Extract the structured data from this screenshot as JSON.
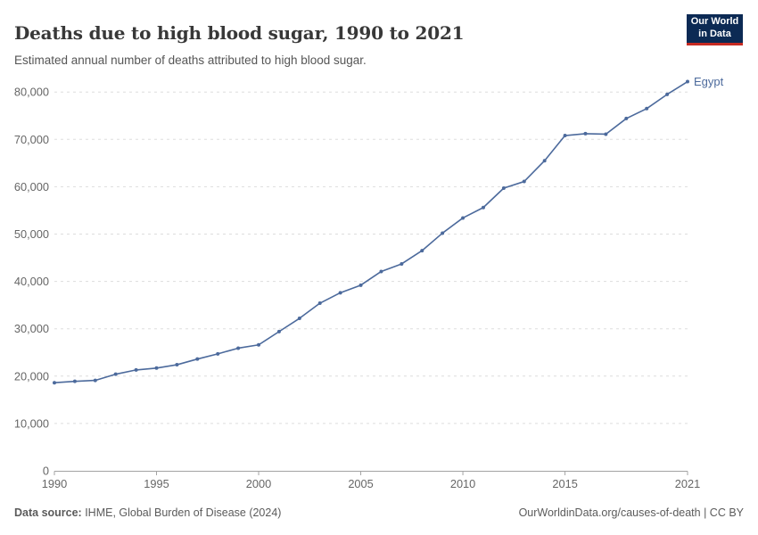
{
  "header": {
    "title": "Deaths due to high blood sugar, 1990 to 2021",
    "subtitle": "Estimated annual number of deaths attributed to high blood sugar.",
    "logo": {
      "line1": "Our World",
      "line2": "in Data",
      "bg_color": "#0C2A54",
      "bar_color": "#C62A22"
    }
  },
  "chart_data": {
    "type": "line",
    "title": "Deaths due to high blood sugar, 1990 to 2021",
    "xlabel": "",
    "ylabel": "",
    "xlim": [
      1990,
      2021
    ],
    "ylim": [
      0,
      80000
    ],
    "x_ticks": [
      1990,
      1995,
      2000,
      2005,
      2010,
      2015,
      2021
    ],
    "y_ticks": [
      0,
      10000,
      20000,
      30000,
      40000,
      50000,
      60000,
      70000,
      80000
    ],
    "grid": "horizontal-dashed",
    "grid_color": "#dddddd",
    "axis_color": "#a3a3a3",
    "tick_label_color": "#666666",
    "legend_position": "end-of-line",
    "series": [
      {
        "name": "Egypt",
        "color": "#4C6A9C",
        "x": [
          1990,
          1991,
          1992,
          1993,
          1994,
          1995,
          1996,
          1997,
          1998,
          1999,
          2000,
          2001,
          2002,
          2003,
          2004,
          2005,
          2006,
          2007,
          2008,
          2009,
          2010,
          2011,
          2012,
          2013,
          2014,
          2015,
          2016,
          2017,
          2018,
          2019,
          2020,
          2021
        ],
        "values": [
          18600,
          18900,
          19100,
          20400,
          21300,
          21700,
          22400,
          23600,
          24700,
          25900,
          26600,
          29400,
          32200,
          35400,
          37600,
          39200,
          42100,
          43700,
          46500,
          50200,
          53400,
          55600,
          59700,
          61100,
          65500,
          70800,
          71200,
          71100,
          74400,
          76500,
          79500,
          82200
        ]
      }
    ]
  },
  "footer": {
    "source_label": "Data source:",
    "source_text": " IHME, Global Burden of Disease (2024)",
    "credit": "OurWorldinData.org/causes-of-death | CC BY"
  }
}
